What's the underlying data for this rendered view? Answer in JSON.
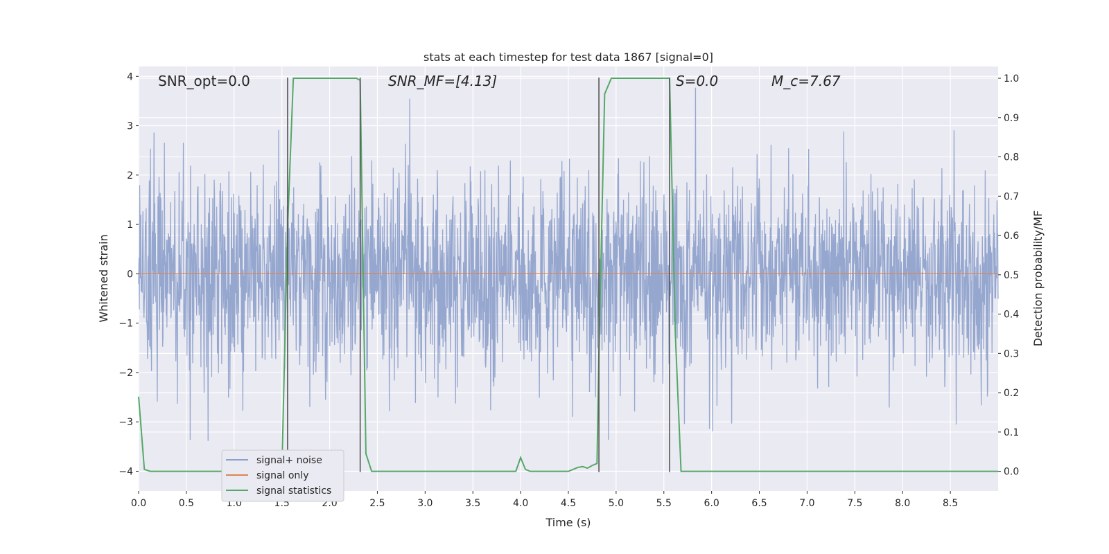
{
  "chart_data": {
    "type": "line",
    "title": "stats at each timestep for test data 1867 [signal=0]",
    "xlabel": "Time (s)",
    "ylabel": "Whitened strain",
    "y2label": "Detection probability/MF",
    "xlim": [
      0,
      9.0
    ],
    "ylim": [
      -4.4,
      4.2
    ],
    "y2lim": [
      -0.05,
      1.03
    ],
    "xticks": [
      0.0,
      0.5,
      1.0,
      1.5,
      2.0,
      2.5,
      3.0,
      3.5,
      4.0,
      4.5,
      5.0,
      5.5,
      6.0,
      6.5,
      7.0,
      7.5,
      8.0,
      8.5
    ],
    "xtick_labels": [
      "0.0",
      "0.5",
      "1.0",
      "1.5",
      "2.0",
      "2.5",
      "3.0",
      "3.5",
      "4.0",
      "4.5",
      "5.0",
      "5.5",
      "6.0",
      "6.5",
      "7.0",
      "7.5",
      "8.0",
      "8.5"
    ],
    "yticks": [
      -4,
      -3,
      -2,
      -1,
      0,
      1,
      2,
      3,
      4
    ],
    "ytick_labels": [
      "−4",
      "−3",
      "−2",
      "−1",
      "0",
      "1",
      "2",
      "3",
      "4"
    ],
    "y2ticks": [
      0.0,
      0.1,
      0.2,
      0.3,
      0.4,
      0.5,
      0.6,
      0.7,
      0.8,
      0.9,
      1.0
    ],
    "y2tick_labels": [
      "0.0",
      "0.1",
      "0.2",
      "0.3",
      "0.4",
      "0.5",
      "0.6",
      "0.7",
      "0.8",
      "0.9",
      "1.0"
    ],
    "grid": true,
    "legend_position": "lower-left",
    "noise": {
      "name": "signal+ noise",
      "color": "#8da0cb",
      "t_start": 0.0,
      "t_end": 9.0,
      "typical_amplitude": 1.0,
      "peak_amplitude": 3.8
    },
    "series": [
      {
        "name": "signal only",
        "color": "#dd8452",
        "axis": "left",
        "x": [
          0.0,
          9.0
        ],
        "y": [
          0.0,
          0.0
        ]
      },
      {
        "name": "signal statistics",
        "color": "#55a868",
        "axis": "right",
        "x": [
          0.0,
          0.06,
          0.12,
          1.5,
          1.56,
          1.62,
          2.28,
          2.32,
          2.38,
          2.44,
          3.95,
          4.0,
          4.05,
          4.1,
          4.5,
          4.6,
          4.65,
          4.7,
          4.75,
          4.8,
          4.82,
          4.88,
          4.95,
          5.56,
          5.62,
          5.68,
          9.0
        ],
        "y": [
          0.19,
          0.005,
          0.0,
          0.0,
          0.62,
          1.0,
          1.0,
          0.995,
          0.045,
          0.0,
          0.0,
          0.035,
          0.005,
          0.0,
          0.0,
          0.01,
          0.012,
          0.008,
          0.015,
          0.02,
          0.3,
          0.96,
          1.0,
          1.0,
          0.35,
          0.0,
          0.0
        ]
      }
    ],
    "vertical_lines": [
      {
        "x": 1.56,
        "color": "#555555"
      },
      {
        "x": 2.32,
        "color": "#555555"
      },
      {
        "x": 4.82,
        "color": "#555555"
      },
      {
        "x": 5.56,
        "color": "#555555"
      }
    ],
    "annotations": [
      {
        "id": "snr-opt",
        "text": "SNR_opt=0.0"
      },
      {
        "id": "snr-mf",
        "text": "SNR_MF=[4.13]"
      },
      {
        "id": "s-value",
        "text": "S=0.0"
      },
      {
        "id": "mc-value",
        "text": "M_c=7.67"
      }
    ]
  }
}
